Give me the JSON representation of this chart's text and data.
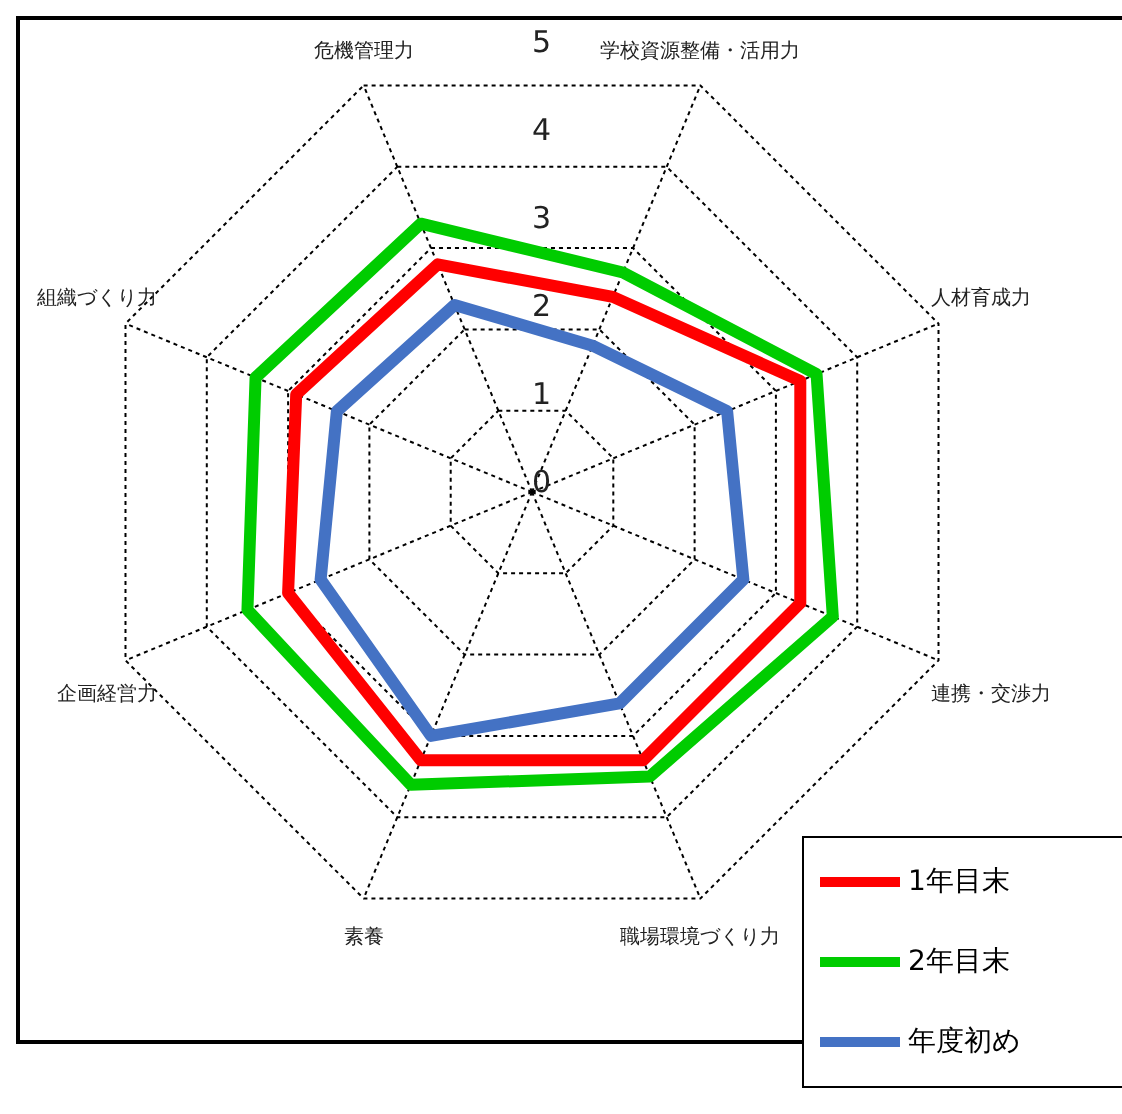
{
  "chart_data": {
    "type": "radar",
    "categories": [
      "危機管理力",
      "学校資源整備・活用力",
      "人材育成力",
      "連携・交渉力",
      "職場環境づくり力",
      "素養",
      "企画経営力",
      "組織づくり力"
    ],
    "series": [
      {
        "name": "年度初め",
        "color": "#4472c4",
        "values": [
          2.3,
          1.8,
          2.4,
          2.6,
          2.6,
          3.0,
          2.6,
          2.4
        ]
      },
      {
        "name": "1年目末",
        "color": "#ff0000",
        "values": [
          2.8,
          2.4,
          3.3,
          3.3,
          3.3,
          3.3,
          3.0,
          2.9
        ]
      },
      {
        "name": "2年目末",
        "color": "#00cc00",
        "values": [
          3.3,
          2.7,
          3.5,
          3.7,
          3.5,
          3.6,
          3.5,
          3.4
        ]
      }
    ],
    "ylim": [
      0,
      5
    ],
    "yticks": [
      0,
      1,
      2,
      3,
      4,
      5
    ],
    "grid": true,
    "legend": "bottom right",
    "marker": "none",
    "line_style": "solid"
  }
}
